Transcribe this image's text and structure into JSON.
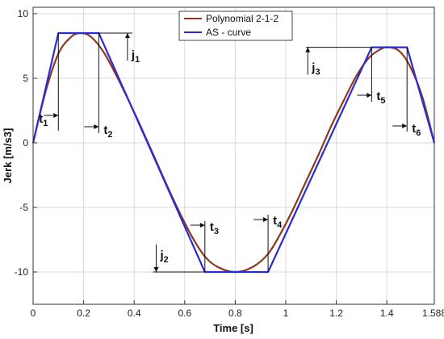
{
  "chart_data": {
    "type": "line",
    "title": "",
    "xlabel": "Time [s]",
    "ylabel": "Jerk [m/s3]",
    "xlim": [
      0,
      1.588
    ],
    "ylim": [
      -12.5,
      10.5
    ],
    "grid": true,
    "legend_position": "top-center",
    "x_ticks": [
      0,
      0.2,
      0.4,
      0.6,
      0.8,
      1,
      1.2,
      1.4,
      1.588
    ],
    "x_tick_labels": [
      "0",
      "0.2",
      "0.4",
      "0.6",
      "0.8",
      "1",
      "1.2",
      "1.4",
      "1.588"
    ],
    "y_ticks": [
      -10,
      -5,
      0,
      5,
      10
    ],
    "y_tick_labels": [
      "-10",
      "-5",
      "0",
      "5",
      "10"
    ],
    "series": [
      {
        "name": "Polynomial 2-1-2",
        "color": "#8B3A1E",
        "x": [
          0,
          0.05,
          0.1,
          0.15,
          0.19,
          0.23,
          0.28,
          0.33,
          0.38,
          0.43,
          0.48,
          0.53,
          0.58,
          0.63,
          0.68,
          0.73,
          0.8,
          0.87,
          0.93,
          0.98,
          1.03,
          1.08,
          1.13,
          1.18,
          1.23,
          1.28,
          1.33,
          1.38,
          1.41,
          1.45,
          1.49,
          1.54,
          1.588
        ],
        "y": [
          0,
          4.0,
          6.9,
          8.2,
          8.5,
          8.2,
          7.0,
          5.2,
          3.2,
          1.1,
          -1.1,
          -3.3,
          -5.4,
          -7.3,
          -8.8,
          -9.6,
          -10.0,
          -9.6,
          -8.6,
          -7.0,
          -5.1,
          -3.0,
          -0.9,
          1.3,
          3.3,
          5.2,
          6.6,
          7.3,
          7.4,
          7.1,
          6.0,
          3.6,
          0
        ]
      },
      {
        "name": "AS - curve",
        "color": "#2B2BD6",
        "x": [
          0,
          0.1,
          0.26,
          0.68,
          0.93,
          1.34,
          1.48,
          1.588
        ],
        "y": [
          0,
          8.5,
          8.5,
          -10.0,
          -10.0,
          7.4,
          7.4,
          0
        ]
      }
    ],
    "annotations": {
      "j1": {
        "base": "j",
        "sub": "1"
      },
      "j2": {
        "base": "j",
        "sub": "2"
      },
      "j3": {
        "base": "j",
        "sub": "3"
      },
      "t1": {
        "base": "t",
        "sub": "1"
      },
      "t2": {
        "base": "t",
        "sub": "2"
      },
      "t3": {
        "base": "t",
        "sub": "3"
      },
      "t4": {
        "base": "t",
        "sub": "4"
      },
      "t5": {
        "base": "t",
        "sub": "5"
      },
      "t6": {
        "base": "t",
        "sub": "6"
      }
    }
  }
}
